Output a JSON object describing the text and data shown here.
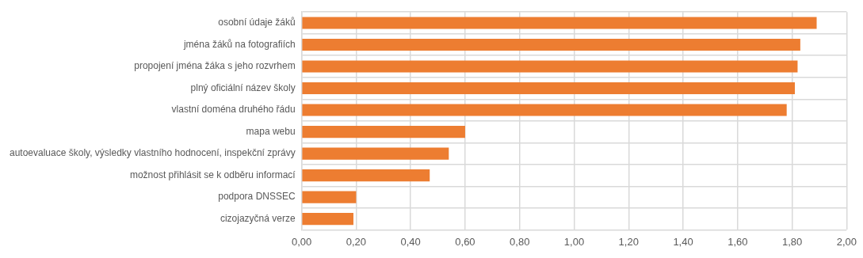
{
  "chart_data": {
    "type": "bar",
    "orientation": "horizontal",
    "categories": [
      "osobní údaje žáků",
      "jména žáků na fotografiích",
      "propojení jména žáka s jeho rozvrhem",
      "plný oficiální název školy",
      "vlastní doména druhého řádu",
      "mapa webu",
      "autoevaluace školy, výsledky vlastního hodnocení, inspekční zprávy",
      "možnost přihlásit se k odběru informací",
      "podpora DNSSEC",
      "cizojazyčná verze"
    ],
    "values": [
      1.89,
      1.83,
      1.82,
      1.81,
      1.78,
      0.6,
      0.54,
      0.47,
      0.2,
      0.19
    ],
    "color": "#ed7d31",
    "xlim": [
      0,
      2
    ],
    "xticks": [
      {
        "value": 0,
        "label": "0,00"
      },
      {
        "value": 0.2,
        "label": "0,20"
      },
      {
        "value": 0.4,
        "label": "0,40"
      },
      {
        "value": 0.6,
        "label": "0,60"
      },
      {
        "value": 0.8,
        "label": "0,80"
      },
      {
        "value": 1,
        "label": "1,00"
      },
      {
        "value": 1.2,
        "label": "1,20"
      },
      {
        "value": 1.4,
        "label": "1,40"
      },
      {
        "value": 1.6,
        "label": "1,60"
      },
      {
        "value": 1.8,
        "label": "1,80"
      },
      {
        "value": 2,
        "label": "2,00"
      }
    ],
    "grid": true,
    "legend": false
  }
}
